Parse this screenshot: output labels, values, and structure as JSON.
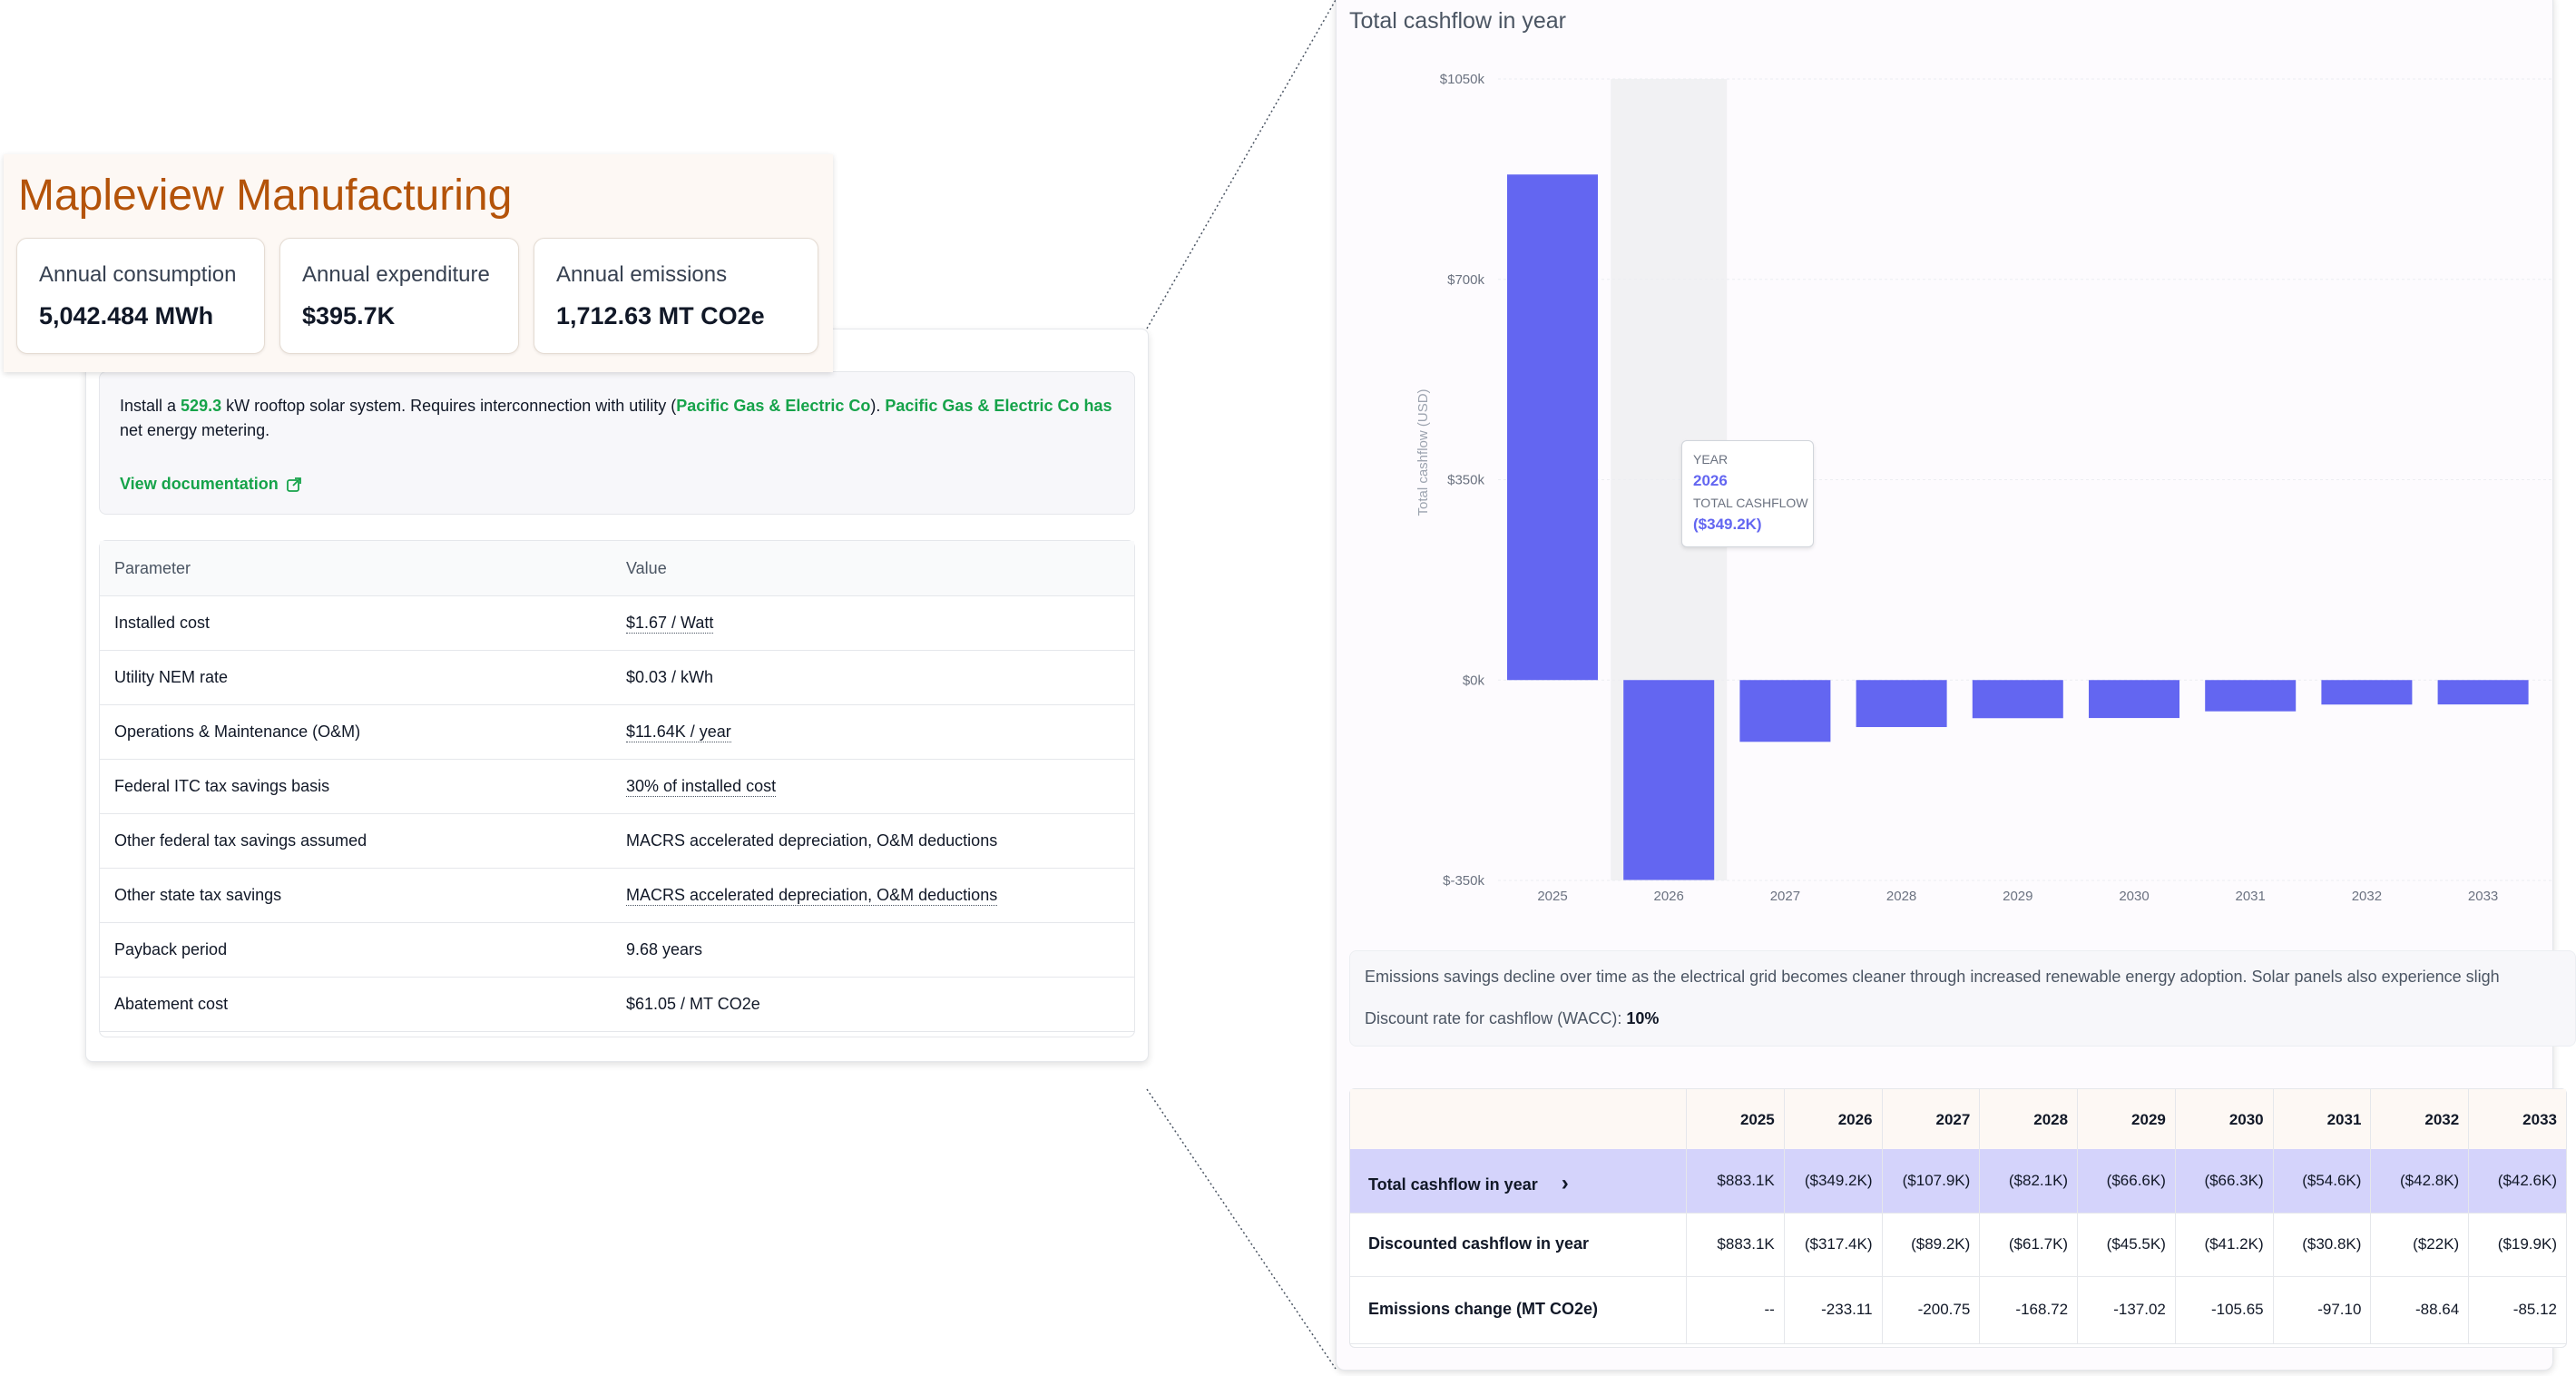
{
  "company": {
    "name": "Mapleview Manufacturing",
    "metrics": [
      {
        "label": "Annual consumption",
        "value": "5,042.484 MWh"
      },
      {
        "label": "Annual expenditure",
        "value": "$395.7K"
      },
      {
        "label": "Annual emissions",
        "value": "1,712.63 MT CO2e"
      }
    ]
  },
  "project": {
    "note": {
      "prefix": "Install a ",
      "size": "529.3",
      "mid": " kW rooftop solar system. Requires interconnection with utility (",
      "utility": "Pacific Gas & Electric Co",
      "close": "). ",
      "utility_has": "Pacific Gas & Electric Co has",
      "suffix": " net energy metering."
    },
    "doc_link": "View documentation",
    "table": {
      "headers": [
        "Parameter",
        "Value"
      ],
      "rows": [
        {
          "param": "Installed cost",
          "value": "$1.67 / Watt",
          "dotted": true
        },
        {
          "param": "Utility NEM rate",
          "value": "$0.03 / kWh",
          "dotted": false
        },
        {
          "param": "Operations & Maintenance (O&M)",
          "value": "$11.64K / year",
          "dotted": true
        },
        {
          "param": "Federal ITC tax savings basis",
          "value": "30% of installed cost",
          "dotted": true
        },
        {
          "param": "Other federal tax savings assumed",
          "value": "MACRS accelerated depreciation, O&M deductions",
          "dotted": false
        },
        {
          "param": "Other state tax savings",
          "value": "MACRS accelerated depreciation, O&M deductions",
          "dotted": true
        },
        {
          "param": "Payback period",
          "value": "9.68 years",
          "dotted": false
        },
        {
          "param": "Abatement cost",
          "value": "$61.05 / MT CO2e",
          "dotted": false
        }
      ]
    }
  },
  "chart_panel": {
    "title": "Total cashflow in year",
    "tooltip": {
      "year_label": "YEAR",
      "year": "2026",
      "value_label": "TOTAL CASHFLOW",
      "value": "($349.2K)"
    },
    "info_line1": "Emissions savings decline over time as the electrical grid becomes cleaner through increased renewable energy adoption. Solar panels also experience sligh",
    "wacc_label": "Discount rate for cashflow (WACC): ",
    "wacc_value": "10%"
  },
  "chart_data": {
    "type": "bar",
    "title": "Total cashflow in year",
    "ylabel": "Total cashflow (USD)",
    "xlabel": "",
    "categories": [
      "2025",
      "2026",
      "2027",
      "2028",
      "2029",
      "2030",
      "2031",
      "2032",
      "2033"
    ],
    "values": [
      883.1,
      -349.2,
      -107.9,
      -82.1,
      -66.6,
      -66.3,
      -54.6,
      -42.8,
      -42.6
    ],
    "unit": "$k",
    "ylim": [
      -350,
      1050
    ],
    "yticks": [
      -350,
      0,
      350,
      700,
      1050
    ],
    "ytick_labels": [
      "$-350k",
      "$0k",
      "$350k",
      "$700k",
      "$1050k"
    ],
    "highlighted_category": "2026",
    "bar_color": "#6366f1",
    "grid": true
  },
  "cashflow_table": {
    "years": [
      "2025",
      "2026",
      "2027",
      "2028",
      "2029",
      "2030",
      "2031",
      "2032",
      "2033"
    ],
    "rows": [
      {
        "label": "Total cashflow in year",
        "values": [
          "$883.1K",
          "($349.2K)",
          "($107.9K)",
          "($82.1K)",
          "($66.6K)",
          "($66.3K)",
          "($54.6K)",
          "($42.8K)",
          "($42.6K)"
        ]
      },
      {
        "label": "Discounted cashflow in year",
        "values": [
          "$883.1K",
          "($317.4K)",
          "($89.2K)",
          "($61.7K)",
          "($45.5K)",
          "($41.2K)",
          "($30.8K)",
          "($22K)",
          "($19.9K)"
        ]
      },
      {
        "label": "Emissions change (MT CO2e)",
        "values": [
          "--",
          "-233.11",
          "-200.75",
          "-168.72",
          "-137.02",
          "-105.65",
          "-97.10",
          "-88.64",
          "-85.12"
        ]
      }
    ]
  },
  "colors": {
    "accent_green": "#16a34a",
    "title_orange": "#b45309",
    "bar": "#6366f1",
    "highlight_row": "#d4d3fb"
  }
}
